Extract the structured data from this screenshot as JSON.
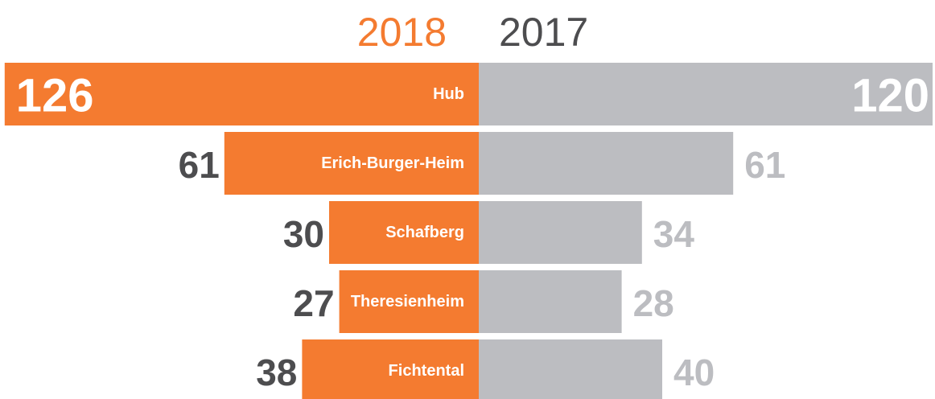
{
  "chart_data": {
    "type": "butterfly",
    "categories": [
      "Hub",
      "Erich-Burger-Heim",
      "Schafberg",
      "Theresienheim",
      "Fichtental"
    ],
    "series": [
      {
        "name": "2018",
        "color": "#f47b30",
        "values": [
          126,
          61,
          30,
          27,
          38
        ]
      },
      {
        "name": "2017",
        "color": "#bcbdc1",
        "values": [
          120,
          61,
          34,
          28,
          40
        ]
      }
    ]
  }
}
